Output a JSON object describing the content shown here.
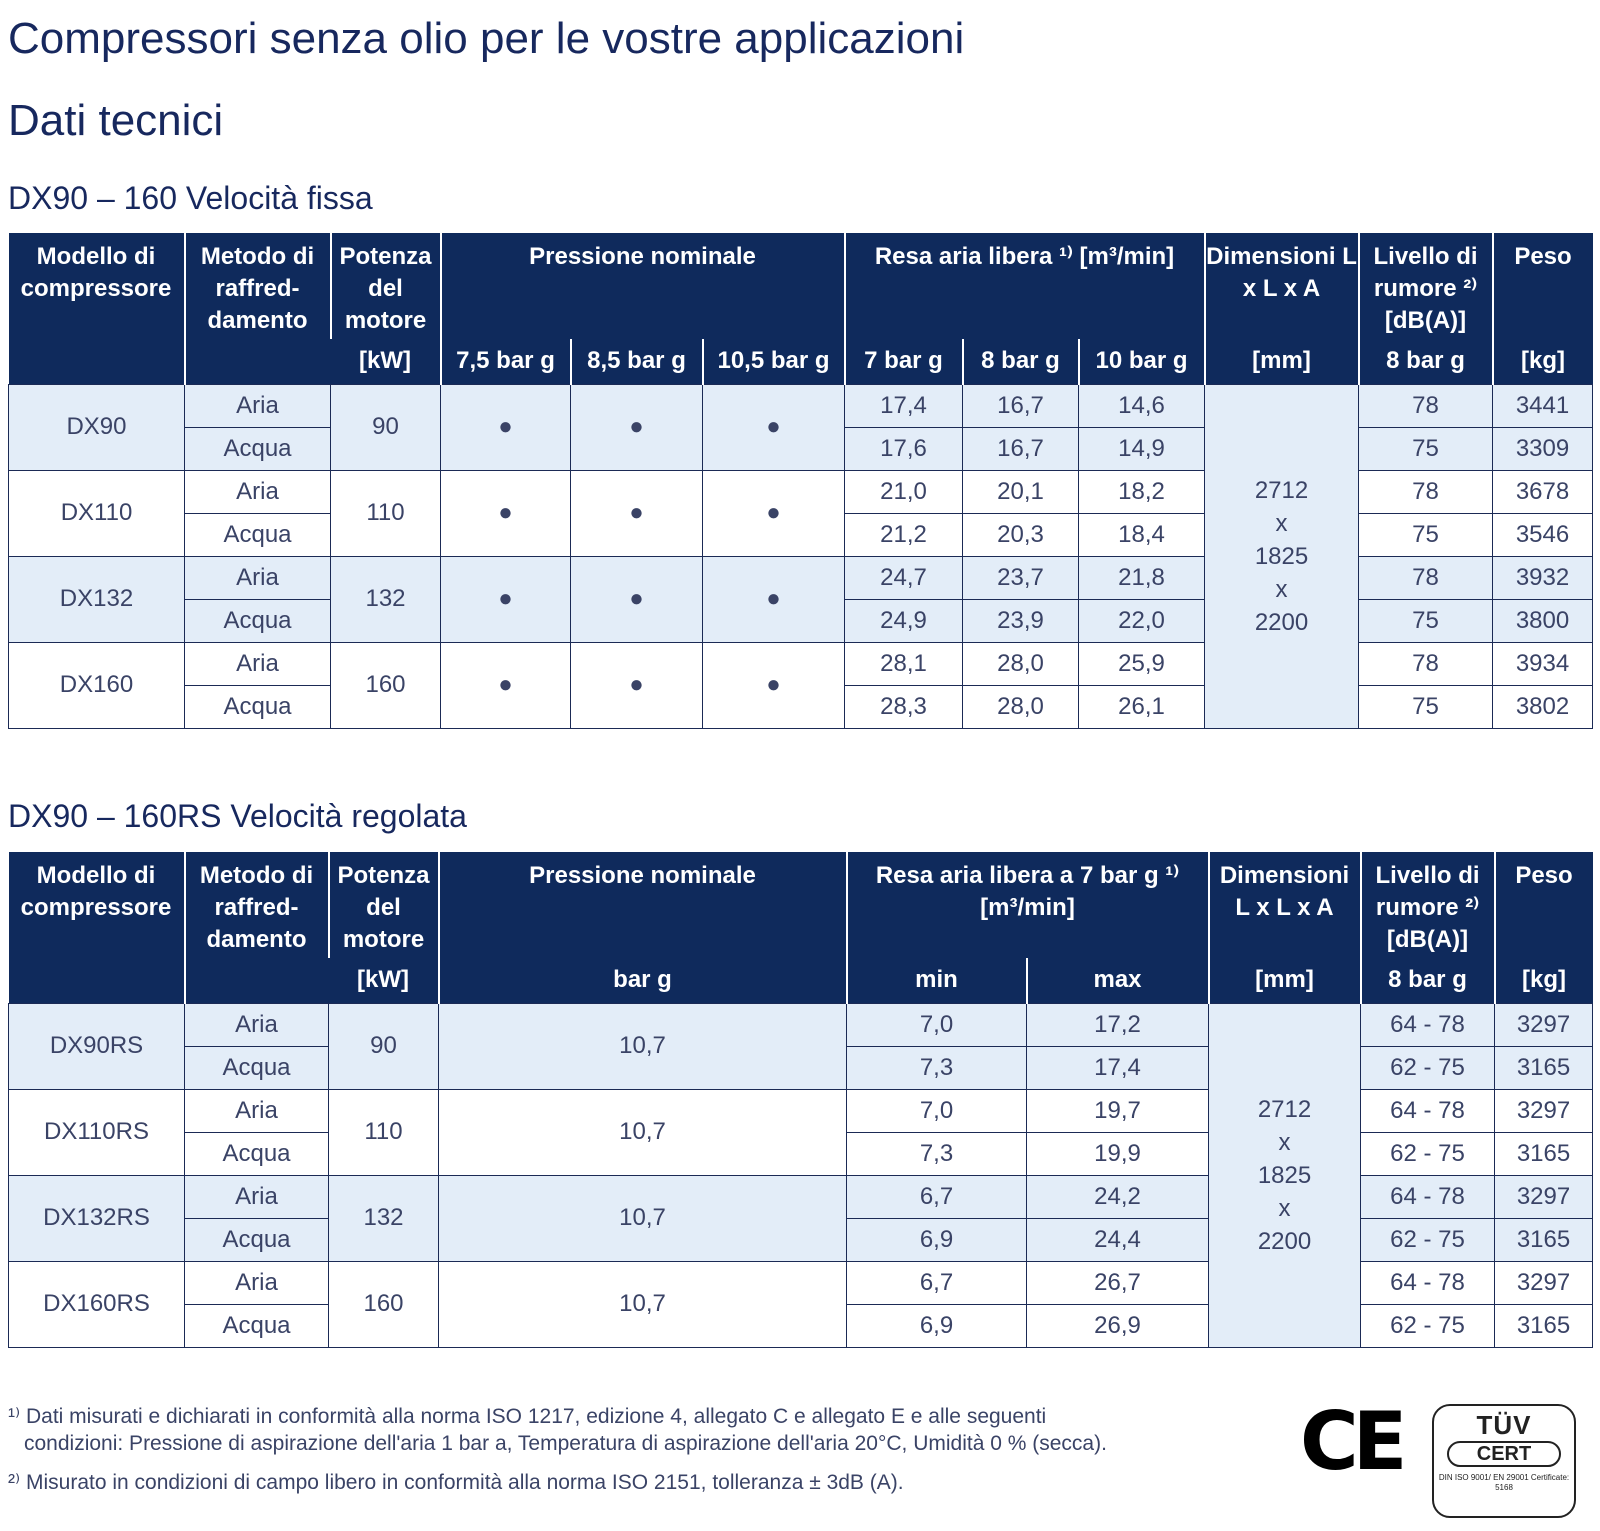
{
  "title": "Compressori senza olio per le vostre applicazioni",
  "subtitle": "Dati tecnici",
  "table1": {
    "heading": "DX90 – 160 Velocità fissa",
    "h_model": "Modello di compressore",
    "h_cool": "Metodo di raffred-damento",
    "h_power": "Potenza del motore",
    "h_power_unit": "[kW]",
    "h_pressure": "Pressione nominale",
    "h_p1": "7,5 bar g",
    "h_p2": "8,5 bar g",
    "h_p3": "10,5 bar g",
    "h_fad": "Resa aria libera ¹⁾ [m³/min]",
    "h_f1": "7 bar g",
    "h_f2": "8 bar g",
    "h_f3": "10 bar g",
    "h_dim": "Dimensioni L x L x A",
    "h_dim_unit": "[mm]",
    "h_noise": "Livello di rumore ²⁾ [dB(A)]",
    "h_noise_unit": "8 bar g",
    "h_weight": "Peso",
    "h_weight_unit": "[kg]",
    "dim_a": "2712",
    "dim_x1": "x",
    "dim_b": "1825",
    "dim_x2": "x",
    "dim_c": "2200",
    "dot": "●",
    "rows": [
      {
        "model": "DX90",
        "power": "90",
        "aria": {
          "cool": "Aria",
          "f1": "17,4",
          "f2": "16,7",
          "f3": "14,6",
          "noise": "78",
          "w": "3441"
        },
        "acqua": {
          "cool": "Acqua",
          "f1": "17,6",
          "f2": "16,7",
          "f3": "14,9",
          "noise": "75",
          "w": "3309"
        }
      },
      {
        "model": "DX110",
        "power": "110",
        "aria": {
          "cool": "Aria",
          "f1": "21,0",
          "f2": "20,1",
          "f3": "18,2",
          "noise": "78",
          "w": "3678"
        },
        "acqua": {
          "cool": "Acqua",
          "f1": "21,2",
          "f2": "20,3",
          "f3": "18,4",
          "noise": "75",
          "w": "3546"
        }
      },
      {
        "model": "DX132",
        "power": "132",
        "aria": {
          "cool": "Aria",
          "f1": "24,7",
          "f2": "23,7",
          "f3": "21,8",
          "noise": "78",
          "w": "3932"
        },
        "acqua": {
          "cool": "Acqua",
          "f1": "24,9",
          "f2": "23,9",
          "f3": "22,0",
          "noise": "75",
          "w": "3800"
        }
      },
      {
        "model": "DX160",
        "power": "160",
        "aria": {
          "cool": "Aria",
          "f1": "28,1",
          "f2": "28,0",
          "f3": "25,9",
          "noise": "78",
          "w": "3934"
        },
        "acqua": {
          "cool": "Acqua",
          "f1": "28,3",
          "f2": "28,0",
          "f3": "26,1",
          "noise": "75",
          "w": "3802"
        }
      }
    ]
  },
  "table2": {
    "heading": "DX90 – 160RS Velocità regolata",
    "h_model": "Modello di compressore",
    "h_cool": "Metodo di raffred-damento",
    "h_power": "Potenza del motore",
    "h_power_unit": "[kW]",
    "h_pressure": "Pressione nominale",
    "h_pressure_unit": "bar g",
    "h_fad": "Resa aria libera a 7 bar g ¹⁾ [m³/min]",
    "h_min": "min",
    "h_max": "max",
    "h_dim": "Dimensioni L x L x A",
    "h_dim_unit": "[mm]",
    "h_noise": "Livello di rumore ²⁾ [dB(A)]",
    "h_noise_unit": "8 bar g",
    "h_weight": "Peso",
    "h_weight_unit": "[kg]",
    "dim_a": "2712",
    "dim_x1": "x",
    "dim_b": "1825",
    "dim_x2": "x",
    "dim_c": "2200",
    "rows": [
      {
        "model": "DX90RS",
        "power": "90",
        "pressure": "10,7",
        "aria": {
          "cool": "Aria",
          "min": "7,0",
          "max": "17,2",
          "noise": "64 - 78",
          "w": "3297"
        },
        "acqua": {
          "cool": "Acqua",
          "min": "7,3",
          "max": "17,4",
          "noise": "62 - 75",
          "w": "3165"
        }
      },
      {
        "model": "DX110RS",
        "power": "110",
        "pressure": "10,7",
        "aria": {
          "cool": "Aria",
          "min": "7,0",
          "max": "19,7",
          "noise": "64 - 78",
          "w": "3297"
        },
        "acqua": {
          "cool": "Acqua",
          "min": "7,3",
          "max": "19,9",
          "noise": "62 - 75",
          "w": "3165"
        }
      },
      {
        "model": "DX132RS",
        "power": "132",
        "pressure": "10,7",
        "aria": {
          "cool": "Aria",
          "min": "6,7",
          "max": "24,2",
          "noise": "64 - 78",
          "w": "3297"
        },
        "acqua": {
          "cool": "Acqua",
          "min": "6,9",
          "max": "24,4",
          "noise": "62 - 75",
          "w": "3165"
        }
      },
      {
        "model": "DX160RS",
        "power": "160",
        "pressure": "10,7",
        "aria": {
          "cool": "Aria",
          "min": "6,7",
          "max": "26,7",
          "noise": "64 - 78",
          "w": "3297"
        },
        "acqua": {
          "cool": "Acqua",
          "min": "6,9",
          "max": "26,9",
          "noise": "62 - 75",
          "w": "3165"
        }
      }
    ]
  },
  "footnotes": {
    "n1_line1": "¹⁾ Dati misurati e dichiarati in conformità alla norma ISO 1217, edizione 4, allegato C e allegato E e alle seguenti",
    "n1_line2": "condizioni: Pressione di aspirazione dell'aria 1 bar a, Temperatura di aspirazione dell'aria 20°C, Umidità 0 % (secca).",
    "n2": "²⁾ Misurato in condizioni di campo libero in conformità alla norma ISO 2151, tolleranza ± 3dB (A)."
  },
  "logos": {
    "ce": "CE",
    "tuv_1": "TÜV",
    "tuv_2": "CERT",
    "tuv_3": "DIN ISO 9001/ EN 29001 Certificate: 5168"
  },
  "colors": {
    "header_bg": "#0f2a5c",
    "shade": "#e3edf8",
    "title": "#17285e"
  }
}
